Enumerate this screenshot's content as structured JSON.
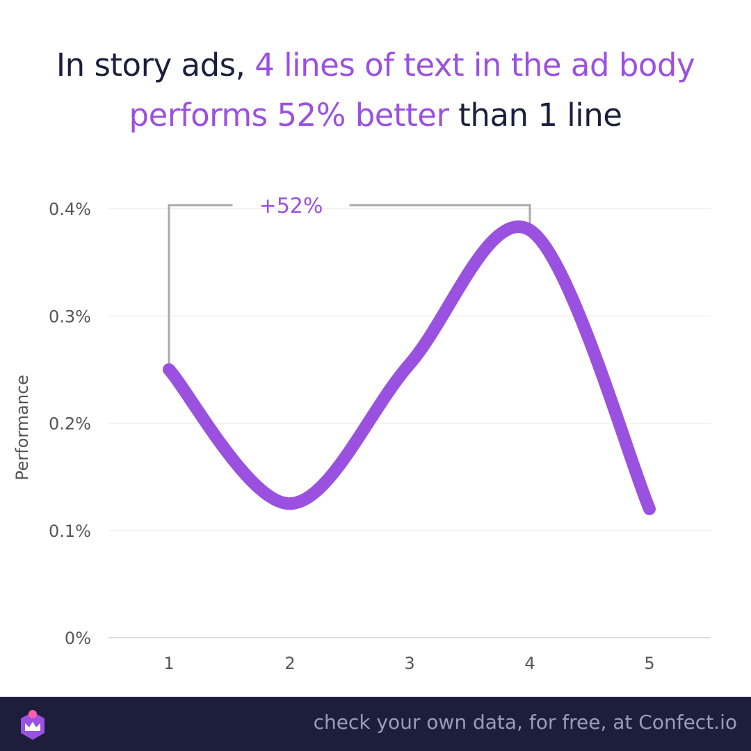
{
  "title": {
    "part1": "In story ads, ",
    "part2": "4 lines of text in the ad body",
    "part3": "performs 52% better",
    "part4": " than 1 line"
  },
  "colors": {
    "accent": "#9b51e0",
    "text": "#1b1f3b",
    "bracket": "#aaaaaa",
    "grid": "#e6e6e6",
    "footer_bg": "#1c1e3b",
    "footer_text": "#9a9db6"
  },
  "chart_data": {
    "type": "line",
    "title": "In story ads, 4 lines of text in the ad body performs 52% better than 1 line",
    "xlabel": "",
    "ylabel": "Performance",
    "x": [
      1,
      2,
      3,
      4,
      5
    ],
    "y": [
      0.25,
      0.125,
      0.255,
      0.38,
      0.12
    ],
    "ylim": [
      0,
      0.4
    ],
    "yticks": [
      "0%",
      "0.1%",
      "0.2%",
      "0.3%",
      "0.4%"
    ],
    "xticks": [
      "1",
      "2",
      "3",
      "4",
      "5"
    ],
    "grid": true,
    "smooth": true,
    "annotation": {
      "text": "+52%",
      "from_x": 1,
      "to_x": 4
    }
  },
  "footer": {
    "cta": "check your own data, for free, at Confect.io",
    "logo_icon": "confect-crown-icon"
  }
}
